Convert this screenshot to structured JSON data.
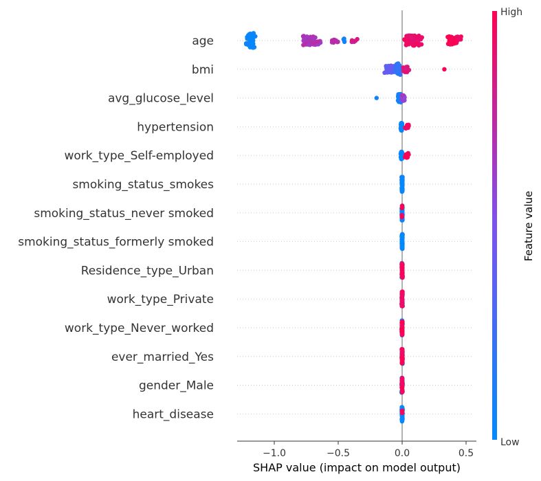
{
  "chart_data": {
    "type": "scatter",
    "subtype": "shap-beeswarm",
    "title": "",
    "xlabel": "SHAP value (impact on model output)",
    "xlim": [
      -1.3,
      0.58
    ],
    "xticks": [
      {
        "value": -1.0,
        "label": "−1.0"
      },
      {
        "value": -0.5,
        "label": "−0.5"
      },
      {
        "value": 0.0,
        "label": "0.0"
      },
      {
        "value": 0.5,
        "label": "0.5"
      }
    ],
    "features": [
      {
        "name": "age",
        "clusters": [
          {
            "x": -1.18,
            "spread": 0.05,
            "n": 70,
            "fv": 0.02,
            "h": 0.9
          },
          {
            "x": -0.72,
            "spread": 0.1,
            "n": 60,
            "fv": 0.68,
            "h": 0.55
          },
          {
            "x": -0.52,
            "spread": 0.05,
            "n": 10,
            "fv": 0.75,
            "h": 0.3
          },
          {
            "x": -0.45,
            "spread": 0.02,
            "n": 4,
            "fv": 0.1,
            "h": 0.25
          },
          {
            "x": -0.37,
            "spread": 0.04,
            "n": 5,
            "fv": 0.8,
            "h": 0.2
          },
          {
            "x": 0.08,
            "spread": 0.09,
            "n": 90,
            "fv": 0.92,
            "h": 0.6
          },
          {
            "x": 0.4,
            "spread": 0.07,
            "n": 60,
            "fv": 0.97,
            "h": 0.5
          }
        ]
      },
      {
        "name": "bmi",
        "clusters": [
          {
            "x": -0.1,
            "spread": 0.06,
            "n": 30,
            "fv": 0.4,
            "h": 0.45
          },
          {
            "x": -0.03,
            "spread": 0.03,
            "n": 40,
            "fv": 0.2,
            "h": 0.7
          },
          {
            "x": 0.03,
            "spread": 0.03,
            "n": 30,
            "fv": 0.85,
            "h": 0.35
          },
          {
            "x": 0.33,
            "spread": 0.0,
            "n": 1,
            "fv": 0.97,
            "h": 0.0
          }
        ]
      },
      {
        "name": "avg_glucose_level",
        "clusters": [
          {
            "x": -0.2,
            "spread": 0.0,
            "n": 1,
            "fv": 0.05,
            "h": 0.0
          },
          {
            "x": -0.02,
            "spread": 0.02,
            "n": 40,
            "fv": 0.08,
            "h": 0.55
          },
          {
            "x": 0.01,
            "spread": 0.02,
            "n": 20,
            "fv": 0.6,
            "h": 0.35
          }
        ]
      },
      {
        "name": "hypertension",
        "clusters": [
          {
            "x": -0.005,
            "spread": 0.008,
            "n": 70,
            "fv": 0.02,
            "h": 0.45
          },
          {
            "x": 0.04,
            "spread": 0.02,
            "n": 12,
            "fv": 0.97,
            "h": 0.3
          }
        ]
      },
      {
        "name": "work_type_Self-employed",
        "clusters": [
          {
            "x": -0.005,
            "spread": 0.008,
            "n": 70,
            "fv": 0.02,
            "h": 0.45
          },
          {
            "x": 0.035,
            "spread": 0.02,
            "n": 12,
            "fv": 0.97,
            "h": 0.3
          }
        ]
      },
      {
        "name": "smoking_status_smokes",
        "clusters": [
          {
            "x": 0.0,
            "spread": 0.005,
            "n": 80,
            "fv": 0.02,
            "h": 0.9
          }
        ]
      },
      {
        "name": "smoking_status_never smoked",
        "clusters": [
          {
            "x": 0.0,
            "spread": 0.005,
            "n": 80,
            "fv": 0.02,
            "h": 0.9
          },
          {
            "x": 0.0,
            "spread": 0.004,
            "n": 4,
            "fv": 0.97,
            "h": 0.9
          }
        ]
      },
      {
        "name": "smoking_status_formerly smoked",
        "clusters": [
          {
            "x": 0.0,
            "spread": 0.005,
            "n": 80,
            "fv": 0.02,
            "h": 0.9
          }
        ]
      },
      {
        "name": "Residence_type_Urban",
        "clusters": [
          {
            "x": 0.0,
            "spread": 0.005,
            "n": 40,
            "fv": 0.02,
            "h": 0.9
          },
          {
            "x": 0.0,
            "spread": 0.005,
            "n": 40,
            "fv": 0.97,
            "h": 0.9
          }
        ]
      },
      {
        "name": "work_type_Private",
        "clusters": [
          {
            "x": 0.0,
            "spread": 0.005,
            "n": 40,
            "fv": 0.02,
            "h": 0.9
          },
          {
            "x": 0.0,
            "spread": 0.005,
            "n": 40,
            "fv": 0.97,
            "h": 0.9
          }
        ]
      },
      {
        "name": "work_type_Never_worked",
        "clusters": [
          {
            "x": 0.0,
            "spread": 0.005,
            "n": 40,
            "fv": 0.02,
            "h": 0.9
          },
          {
            "x": 0.0,
            "spread": 0.005,
            "n": 40,
            "fv": 0.97,
            "h": 0.9
          }
        ]
      },
      {
        "name": "ever_married_Yes",
        "clusters": [
          {
            "x": 0.0,
            "spread": 0.005,
            "n": 30,
            "fv": 0.02,
            "h": 0.9
          },
          {
            "x": 0.0,
            "spread": 0.005,
            "n": 50,
            "fv": 0.97,
            "h": 0.9
          }
        ]
      },
      {
        "name": "gender_Male",
        "clusters": [
          {
            "x": 0.0,
            "spread": 0.005,
            "n": 50,
            "fv": 0.02,
            "h": 0.9
          },
          {
            "x": 0.0,
            "spread": 0.005,
            "n": 30,
            "fv": 0.97,
            "h": 0.9
          }
        ]
      },
      {
        "name": "heart_disease",
        "clusters": [
          {
            "x": 0.0,
            "spread": 0.005,
            "n": 80,
            "fv": 0.02,
            "h": 0.9
          },
          {
            "x": 0.0,
            "spread": 0.004,
            "n": 4,
            "fv": 0.97,
            "h": 0.9
          }
        ]
      }
    ],
    "colorbar": {
      "title": "Feature value",
      "high_label": "High",
      "low_label": "Low",
      "low_color": "#008afb",
      "mid_color": "#7c52f0",
      "high_color": "#ff0051"
    },
    "grid": "dotted horizontal per feature",
    "zero_line": true
  }
}
